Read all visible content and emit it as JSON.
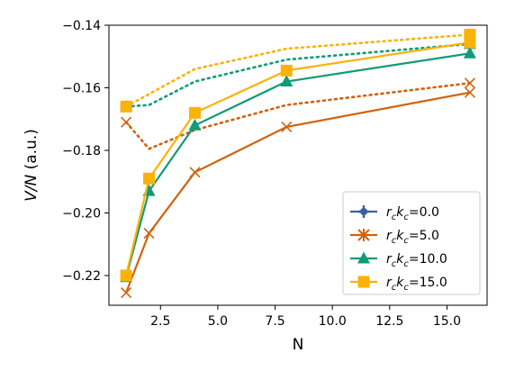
{
  "chart_data": {
    "type": "line",
    "xlabel": "N",
    "ylabel_parts": [
      "V/N",
      " (a.u.)"
    ],
    "xlim": [
      0.25,
      16.75
    ],
    "ylim": [
      -0.2295,
      -0.14
    ],
    "xticks": [
      2.5,
      5.0,
      7.5,
      10.0,
      12.5,
      15.0
    ],
    "xtick_labels": [
      "2.5",
      "5.0",
      "7.5",
      "10.0",
      "12.5",
      "15.0"
    ],
    "yticks": [
      -0.22,
      -0.2,
      -0.18,
      -0.16,
      -0.14
    ],
    "ytick_labels": [
      "−0.22",
      "−0.20",
      "−0.18",
      "−0.16",
      "−0.14"
    ],
    "grid": false,
    "legend_position": "lower-right",
    "x": [
      1,
      2,
      4,
      8,
      16
    ],
    "series": [
      {
        "name": "r_c k_c=0.0",
        "label_parts": [
          "r",
          "c",
          "k",
          "c",
          "=0.0"
        ],
        "color": "#3a5f9e",
        "marker": "plus",
        "solid": [
          null,
          null,
          null,
          null,
          null
        ],
        "dotted": [
          null,
          null,
          null,
          null,
          null
        ]
      },
      {
        "name": "r_c k_c=5.0",
        "label_parts": [
          "r",
          "c",
          "k",
          "c",
          "=5.0"
        ],
        "color": "#d1620d",
        "marker": "x",
        "solid": [
          -0.2255,
          -0.2065,
          -0.187,
          -0.1725,
          -0.1615
        ],
        "dotted": [
          -0.171,
          -0.1795,
          -0.1735,
          -0.1655,
          -0.1585
        ]
      },
      {
        "name": "r_c k_c=10.0",
        "label_parts": [
          "r",
          "c",
          "k",
          "c",
          "=10.0"
        ],
        "color": "#109b78",
        "marker": "triangle",
        "solid": [
          -0.2205,
          -0.193,
          -0.172,
          -0.158,
          -0.149
        ],
        "dotted": [
          -0.166,
          -0.1655,
          -0.158,
          -0.151,
          -0.146
        ]
      },
      {
        "name": "r_c k_c=15.0",
        "label_parts": [
          "r",
          "c",
          "k",
          "c",
          "=15.0"
        ],
        "color": "#fbb209",
        "marker": "square",
        "solid": [
          -0.22,
          -0.189,
          -0.168,
          -0.1545,
          -0.1455
        ],
        "dotted": [
          -0.166,
          -0.162,
          -0.154,
          -0.1475,
          -0.143
        ]
      }
    ]
  }
}
